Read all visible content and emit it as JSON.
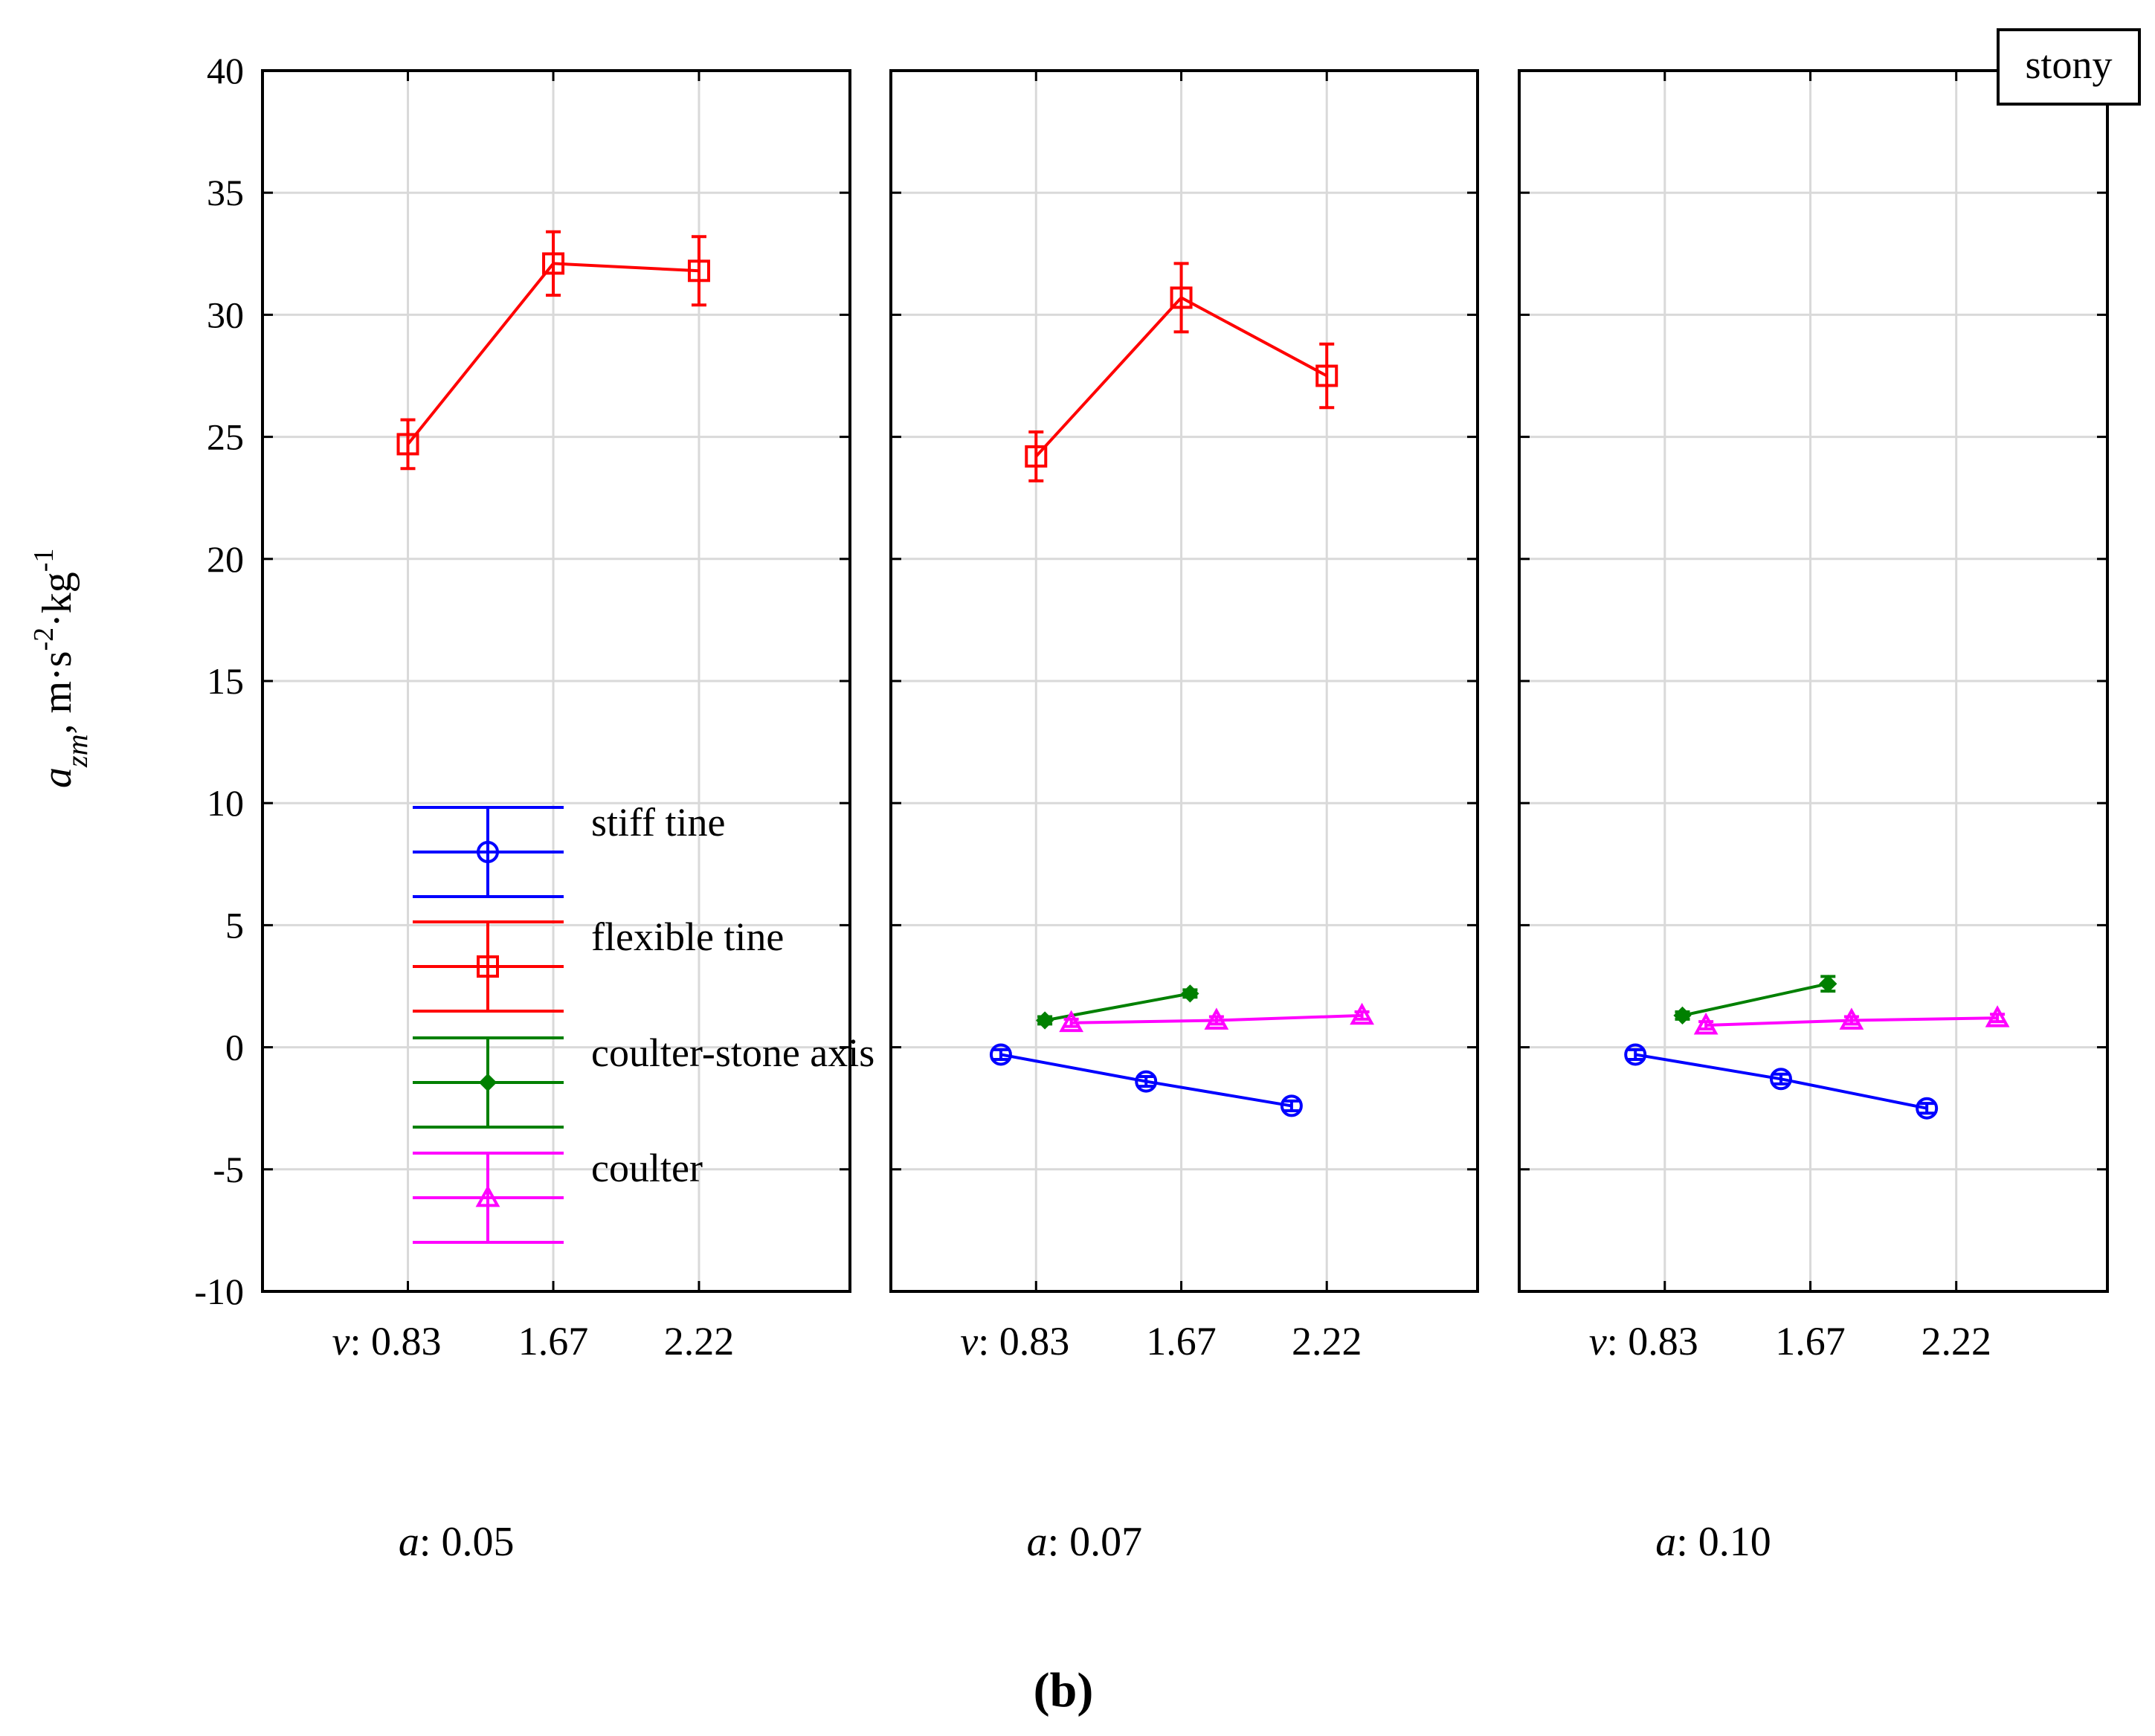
{
  "chart_data": {
    "type": "line",
    "panel_label": "(b)",
    "condition_label": "stony",
    "ylabel": {
      "symbol": "a",
      "subscript": "zm",
      "units": ", m·s",
      "exp1": "-2",
      "mid": "·kg",
      "exp2": "-1"
    },
    "ylim": [
      -10,
      40
    ],
    "yticks": [
      -10,
      -5,
      0,
      5,
      10,
      15,
      20,
      25,
      30,
      35,
      40
    ],
    "grid": true,
    "x_factor": {
      "name": "v",
      "prefix": "v:",
      "categories": [
        "0.83",
        "1.67",
        "2.22"
      ]
    },
    "panel_factor": {
      "name": "a",
      "prefix": "a:"
    },
    "legend": {
      "position": "lower-left of first panel",
      "entries": [
        "stiff tine",
        "flexible tine",
        "coulter-stone axis",
        "coulter"
      ]
    },
    "series": [
      {
        "name": "stiff tine",
        "color": "#0000ff",
        "marker": "circle"
      },
      {
        "name": "flexible tine",
        "color": "#ff0000",
        "marker": "square"
      },
      {
        "name": "coulter-stone axis",
        "color": "#008000",
        "marker": "diamond"
      },
      {
        "name": "coulter",
        "color": "#ff00ff",
        "marker": "triangle"
      }
    ],
    "panels": [
      {
        "label": "0.05",
        "data": {
          "stiff tine": null,
          "flexible tine": {
            "values": [
              24.7,
              32.1,
              31.8
            ],
            "err": [
              1.0,
              1.3,
              1.4
            ]
          },
          "coulter-stone axis": null,
          "coulter": null
        }
      },
      {
        "label": "0.07",
        "data": {
          "stiff tine": {
            "values": [
              -0.3,
              -1.4,
              -2.4
            ],
            "err": [
              0.2,
              0.2,
              0.2
            ]
          },
          "flexible tine": {
            "values": [
              24.2,
              30.7,
              27.5
            ],
            "err": [
              1.0,
              1.4,
              1.3
            ]
          },
          "coulter-stone axis": {
            "values": [
              1.1,
              2.2,
              null
            ],
            "err": [
              0.15,
              0.15,
              0
            ]
          },
          "coulter": {
            "values": [
              1.0,
              1.1,
              1.3
            ],
            "err": [
              0.15,
              0.15,
              0.15
            ]
          }
        }
      },
      {
        "label": "0.10",
        "data": {
          "stiff tine": {
            "values": [
              -0.3,
              -1.3,
              -2.5
            ],
            "err": [
              0.2,
              0.2,
              0.2
            ]
          },
          "flexible tine": null,
          "coulter-stone axis": {
            "values": [
              1.3,
              2.6,
              null
            ],
            "err": [
              0.15,
              0.3,
              0
            ]
          },
          "coulter": {
            "values": [
              0.9,
              1.1,
              1.2
            ],
            "err": [
              0.15,
              0.15,
              0.15
            ]
          }
        }
      }
    ]
  }
}
